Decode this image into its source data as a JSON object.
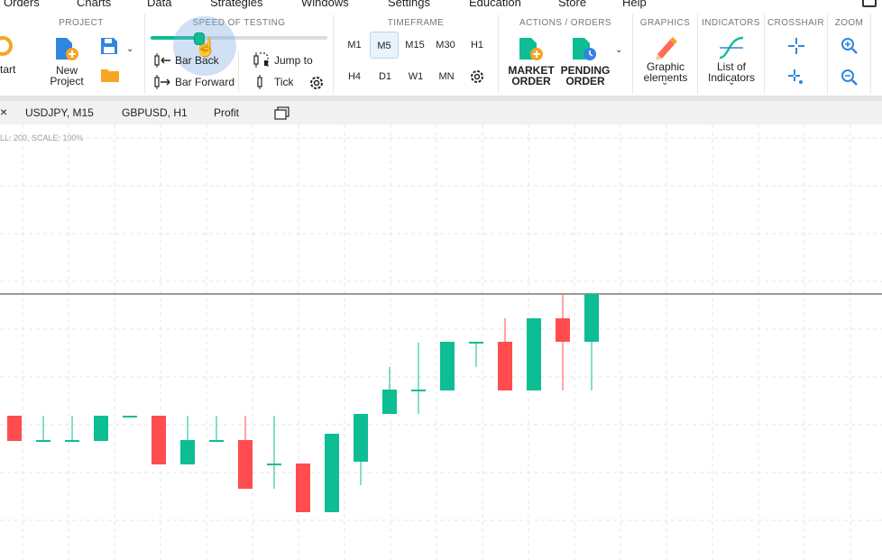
{
  "menu": {
    "items": [
      "Orders",
      "Charts",
      "Data",
      "Strategies",
      "Windows",
      "Settings",
      "Education",
      "Store",
      "Help"
    ]
  },
  "ribbon": {
    "start_label": "tart",
    "project": {
      "title": "PROJECT",
      "new_project_line1": "New",
      "new_project_line2": "Project"
    },
    "speed": {
      "title": "SPEED OF TESTING",
      "value_percent": 27,
      "bar_back": "Bar Back",
      "bar_forward": "Bar Forward",
      "jump_to": "Jump to",
      "tick": "Tick"
    },
    "timeframe": {
      "title": "TIMEFRAME",
      "row1": [
        "M1",
        "M5",
        "M15",
        "M30",
        "H1"
      ],
      "row2": [
        "H4",
        "D1",
        "W1",
        "MN"
      ],
      "selected": "M5"
    },
    "actions": {
      "title": "ACTIONS  /  ORDERS",
      "market_line1": "MARKET",
      "market_line2": "ORDER",
      "pending_line1": "PENDING",
      "pending_line2": "ORDER"
    },
    "graphics": {
      "title": "GRAPHICS",
      "line1": "Graphic",
      "line2": "elements"
    },
    "indicators": {
      "title": "INDICATORS",
      "line1": "List of",
      "line2": "Indicators"
    },
    "crosshair": {
      "title": "CROSSHAIR"
    },
    "zoom": {
      "title": "ZOOM"
    }
  },
  "tabs": {
    "close_glyph": "×",
    "items": [
      "USDJPY, M15",
      "GBPUSD, H1",
      "Profit"
    ]
  },
  "chart": {
    "info_text": "LL: 200, SCALE: 100%",
    "colors": {
      "bull": "#0dbd94",
      "bear": "#ff4d4f",
      "grid": "#e6e6e6",
      "price_line": "#333333"
    }
  }
}
